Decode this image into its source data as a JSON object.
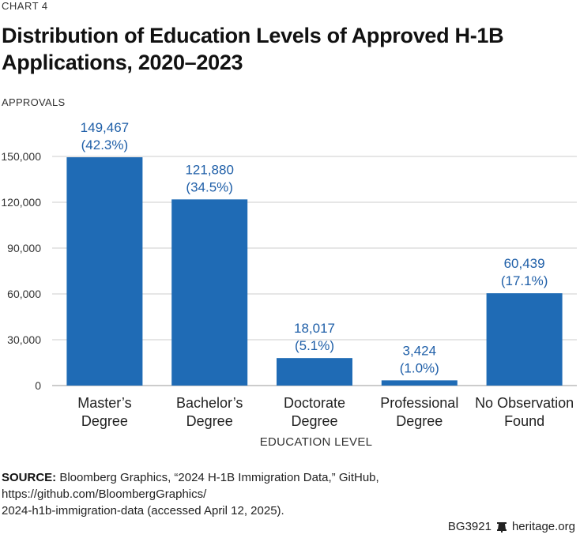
{
  "chart_label": "CHART 4",
  "title_line1": "Distribution of Education Levels of Approved H-1B",
  "title_line2": "Applications, 2020–2023",
  "source_label": "SOURCE:",
  "source_text_line1": "Bloomberg Graphics, “2024 H-1B Immigration Data,” GitHub, https://github.com/BloombergGraphics/",
  "source_text_line2": "2024-h1b-immigration-data (accessed April 12, 2025).",
  "footer_code": "BG3921",
  "footer_site": "heritage.org",
  "colors": {
    "bar": "#1f6bb5",
    "label": "#1f5fa8",
    "grid": "#cccccc"
  },
  "chart_data": {
    "type": "bar",
    "title": "Distribution of Education Levels of Approved H-1B Applications, 2020–2023",
    "ylabel": "APPROVALS",
    "xlabel": "EDUCATION LEVEL",
    "ylim": [
      0,
      150000
    ],
    "yticks": [
      0,
      30000,
      60000,
      90000,
      120000,
      150000
    ],
    "ytick_labels": [
      "0",
      "30,000",
      "60,000",
      "90,000",
      "120,000",
      "150,000"
    ],
    "categories": [
      [
        "Master’s",
        "Degree"
      ],
      [
        "Bachelor’s",
        "Degree"
      ],
      [
        "Doctorate",
        "Degree"
      ],
      [
        "Professional",
        "Degree"
      ],
      [
        "No Observation",
        "Found"
      ]
    ],
    "values": [
      149467,
      121880,
      18017,
      3424,
      60439
    ],
    "value_labels": [
      "149,467",
      "121,880",
      "18,017",
      "3,424",
      "60,439"
    ],
    "percent_labels": [
      "(42.3%)",
      "(34.5%)",
      "(5.1%)",
      "(1.0%)",
      "(17.1%)"
    ]
  }
}
